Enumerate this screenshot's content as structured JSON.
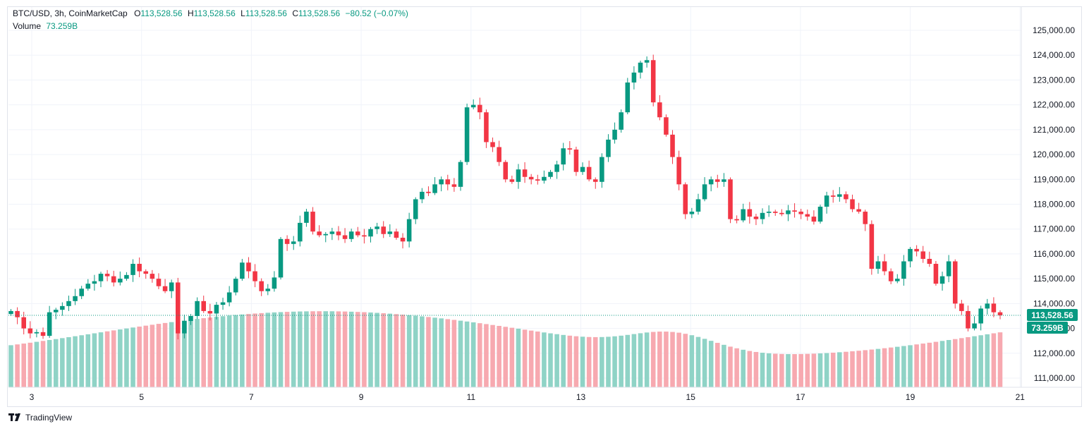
{
  "legend": {
    "symbol_line": "BTC/USD, 3h, CoinMarketCap",
    "o_label": "O",
    "o_value": "113,528.56",
    "h_label": "H",
    "h_value": "113,528.56",
    "l_label": "L",
    "l_value": "113,528.56",
    "c_label": "C",
    "c_value": "113,528.56",
    "change": "−80.52 (−0.07%)",
    "volume_label": "Volume",
    "volume_value": "73.259B"
  },
  "badges": {
    "price": "113,528.56",
    "volume": "73.259B"
  },
  "footer": {
    "brand": "TradingView",
    "logo_icon": "tradingview-logo-icon"
  },
  "colors": {
    "up": "#089981",
    "down": "#f23645",
    "vol_up": "#8fd3c6",
    "vol_down": "#f7a9b0",
    "grid": "#f0f3fa",
    "text": "#131722"
  },
  "chart_data": {
    "type": "candlestick",
    "title": "BTC/USD, 3h, CoinMarketCap",
    "price_axis": {
      "ticks": [
        "125,000.00",
        "124,000.00",
        "123,000.00",
        "122,000.00",
        "121,000.00",
        "120,000.00",
        "119,000.00",
        "118,000.00",
        "117,000.00",
        "116,000.00",
        "115,000.00",
        "114,000.00",
        "113,000.00",
        "112,000.00",
        "111,000.00"
      ],
      "range": [
        110600,
        125500
      ]
    },
    "time_axis": {
      "ticks": [
        "3",
        "5",
        "7",
        "9",
        "11",
        "13",
        "15",
        "17",
        "19",
        "21"
      ]
    },
    "last_price": 113528.56,
    "last_volume": "73.259B",
    "grid": true,
    "volume_note": "volume bars shown as relative heights",
    "closes": [
      113700,
      113450,
      113000,
      112800,
      112850,
      112700,
      113650,
      113750,
      113900,
      114100,
      114300,
      114600,
      114800,
      114900,
      115200,
      115100,
      114850,
      115000,
      115150,
      115600,
      115300,
      115200,
      115000,
      114700,
      114500,
      114850,
      112800,
      113300,
      113500,
      114100,
      113700,
      113600,
      113950,
      114050,
      114450,
      115000,
      115650,
      115300,
      114900,
      114500,
      114600,
      115050,
      116600,
      116400,
      116500,
      117250,
      117700,
      116900,
      116750,
      116800,
      116900,
      116750,
      116600,
      116900,
      116750,
      116700,
      117000,
      117100,
      116800,
      116900,
      116650,
      116500,
      117400,
      118200,
      118500,
      118450,
      118800,
      119000,
      118800,
      118700,
      119700,
      121900,
      122000,
      121700,
      120500,
      120300,
      119700,
      119000,
      118900,
      119400,
      119100,
      119000,
      118950,
      119100,
      119300,
      119600,
      120250,
      120200,
      119300,
      119500,
      119000,
      118900,
      119900,
      120600,
      121000,
      121700,
      122900,
      123300,
      123700,
      123800,
      122100,
      121500,
      120800,
      119900,
      118800,
      117600,
      117700,
      118200,
      118800,
      119000,
      118900,
      119000,
      117400,
      117350,
      117800,
      117500,
      117400,
      117650,
      117700,
      117650,
      117600,
      117750,
      117700,
      117600,
      117500,
      117300,
      117900,
      118350,
      118300,
      118400,
      118200,
      117800,
      117700,
      117200,
      115400,
      115700,
      115300,
      114900,
      115000,
      115700,
      116200,
      116100,
      115800,
      115600,
      114800,
      115100,
      115700,
      114000,
      113700,
      113000,
      113200,
      113800,
      114000,
      113650,
      113528.56
    ]
  }
}
